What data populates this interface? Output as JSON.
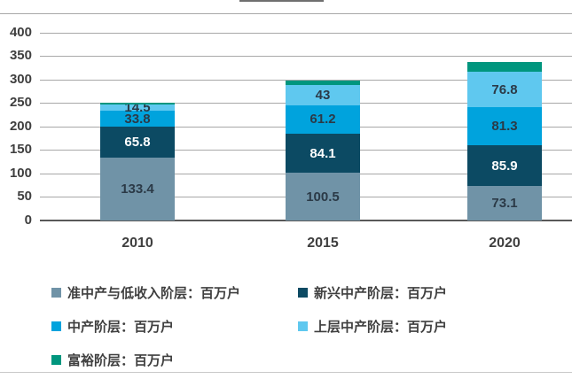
{
  "page": {
    "background": "#ffffff",
    "notes": {
      "title_remnant": "bottom sliver of a cropped-off chart title visible at top center"
    }
  },
  "chart_data": {
    "type": "bar",
    "stacked": true,
    "title": "",
    "xlabel": "",
    "ylabel": "",
    "unit": "百万户",
    "categories": [
      "2010",
      "2015",
      "2020"
    ],
    "series": [
      {
        "name": "准中产与低收入阶层：百万户",
        "color": "#7093a7",
        "values": [
          133.4,
          100.5,
          73.1
        ],
        "labels": [
          "133.4",
          "100.5",
          "73.1"
        ],
        "label_color": "#2b3a47"
      },
      {
        "name": "新兴中产阶层：百万户",
        "color": "#0c4a63",
        "values": [
          65.8,
          84.1,
          85.9
        ],
        "labels": [
          "65.8",
          "84.1",
          "85.9"
        ],
        "label_color": "#ffffff"
      },
      {
        "name": "中产阶层：百万户",
        "color": "#00a3dd",
        "values": [
          33.8,
          61.2,
          81.3
        ],
        "labels": [
          "33.8",
          "61.2",
          "81.3"
        ],
        "label_color": "#2b3a47"
      },
      {
        "name": "上层中产阶层：百万户",
        "color": "#5fc8ef",
        "values": [
          14.5,
          43,
          76.8
        ],
        "labels": [
          "14.5",
          "43",
          "76.8"
        ],
        "label_color": "#2b3a47"
      },
      {
        "name": "富裕阶层：百万户",
        "color": "#00967e",
        "values": [
          3,
          9,
          20
        ],
        "labels": [
          null,
          null,
          null
        ],
        "label_color": "#2b3a47",
        "note": "segments visible but unlabeled; values estimated from gridlines"
      }
    ],
    "ylim": [
      0,
      400
    ],
    "yticks": [
      0,
      50,
      100,
      150,
      200,
      250,
      300,
      350,
      400
    ],
    "grid": true,
    "legend_position": "bottom",
    "colors": {
      "gridline": "#a8a8a8",
      "zero_axis": "#595959",
      "tick_text": "#3f3f3f",
      "legend_text": "#3f3f3f"
    }
  }
}
